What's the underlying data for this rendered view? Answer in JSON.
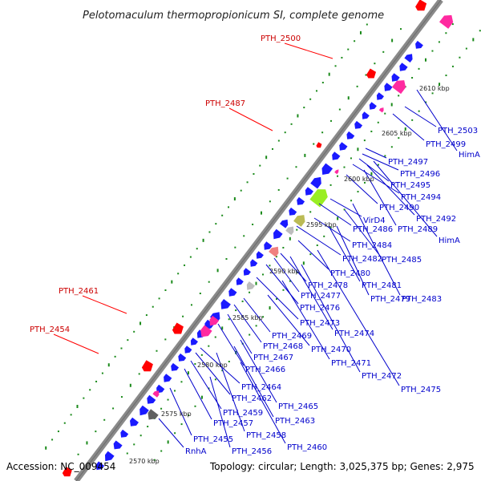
{
  "title": "Pelotomaculum thermopropionicum SI, complete genome",
  "footer": {
    "accession": "Accession: NC_009454",
    "summary": "Topology: circular; Length: 3,025,375 bp; Genes: 2,975"
  },
  "colors": {
    "backbone": "#8a8a8a",
    "backbone_dark": "#555555",
    "gene_blue": "#1a1aff",
    "gene_pink": "#ff2aa0",
    "gene_red": "#ff0000",
    "gene_green": "#99ee22",
    "gene_olive": "#bbbb55",
    "gene_gray": "#bdbdbd",
    "gene_salmon": "#f08080",
    "gene_dark": "#606060",
    "dots_green": "#1a8a1a",
    "label_blue": "#0000cc",
    "label_red": "#cc0000",
    "tick_text": "#222222"
  },
  "kbp_ticks": [
    {
      "label": "2570 kbp"
    },
    {
      "label": "2575 kbp"
    },
    {
      "label": "2580 kbp"
    },
    {
      "label": "2585 kbp"
    },
    {
      "label": "2590 kbp"
    },
    {
      "label": "2595 kbp"
    },
    {
      "label": "2600 kbp"
    },
    {
      "label": "2605 kbp"
    },
    {
      "label": "2610 kbp"
    }
  ],
  "red_labels": [
    {
      "text": "PTH_2500"
    },
    {
      "text": "PTH_2487"
    },
    {
      "text": "PTH_2461"
    },
    {
      "text": "PTH_2454"
    }
  ],
  "blue_labels": [
    {
      "text": "PTH_2503"
    },
    {
      "text": "PTH_2499"
    },
    {
      "text": "HimA"
    },
    {
      "text": "PTH_2497"
    },
    {
      "text": "PTH_2496"
    },
    {
      "text": "PTH_2495"
    },
    {
      "text": "PTH_2494"
    },
    {
      "text": "PTH_2490"
    },
    {
      "text": "PTH_2492"
    },
    {
      "text": "VirD4"
    },
    {
      "text": "PTH_2486"
    },
    {
      "text": "PTH_2489"
    },
    {
      "text": "HimA"
    },
    {
      "text": "PTH_2484"
    },
    {
      "text": "PTH_2482"
    },
    {
      "text": "PTH_2485"
    },
    {
      "text": "PTH_2480"
    },
    {
      "text": "PTH_2478"
    },
    {
      "text": "PTH_2481"
    },
    {
      "text": "PTH_2477"
    },
    {
      "text": "PTH_2479"
    },
    {
      "text": "PTH_2483"
    },
    {
      "text": "PTH_2476"
    },
    {
      "text": "PTH_2473"
    },
    {
      "text": "PTH_2474"
    },
    {
      "text": "PTH_2469"
    },
    {
      "text": "PTH_2470"
    },
    {
      "text": "PTH_2468"
    },
    {
      "text": "PTH_2467"
    },
    {
      "text": "PTH_2471"
    },
    {
      "text": "PTH_2466"
    },
    {
      "text": "PTH_2472"
    },
    {
      "text": "PTH_2475"
    },
    {
      "text": "PTH_2464"
    },
    {
      "text": "PTH_2462"
    },
    {
      "text": "PTH_2465"
    },
    {
      "text": "PTH_2459"
    },
    {
      "text": "PTH_2463"
    },
    {
      "text": "PTH_2457"
    },
    {
      "text": "PTH_2458"
    },
    {
      "text": "PTH_2455"
    },
    {
      "text": "PTH_2460"
    },
    {
      "text": "RnhA"
    },
    {
      "text": "PTH_2456"
    }
  ]
}
